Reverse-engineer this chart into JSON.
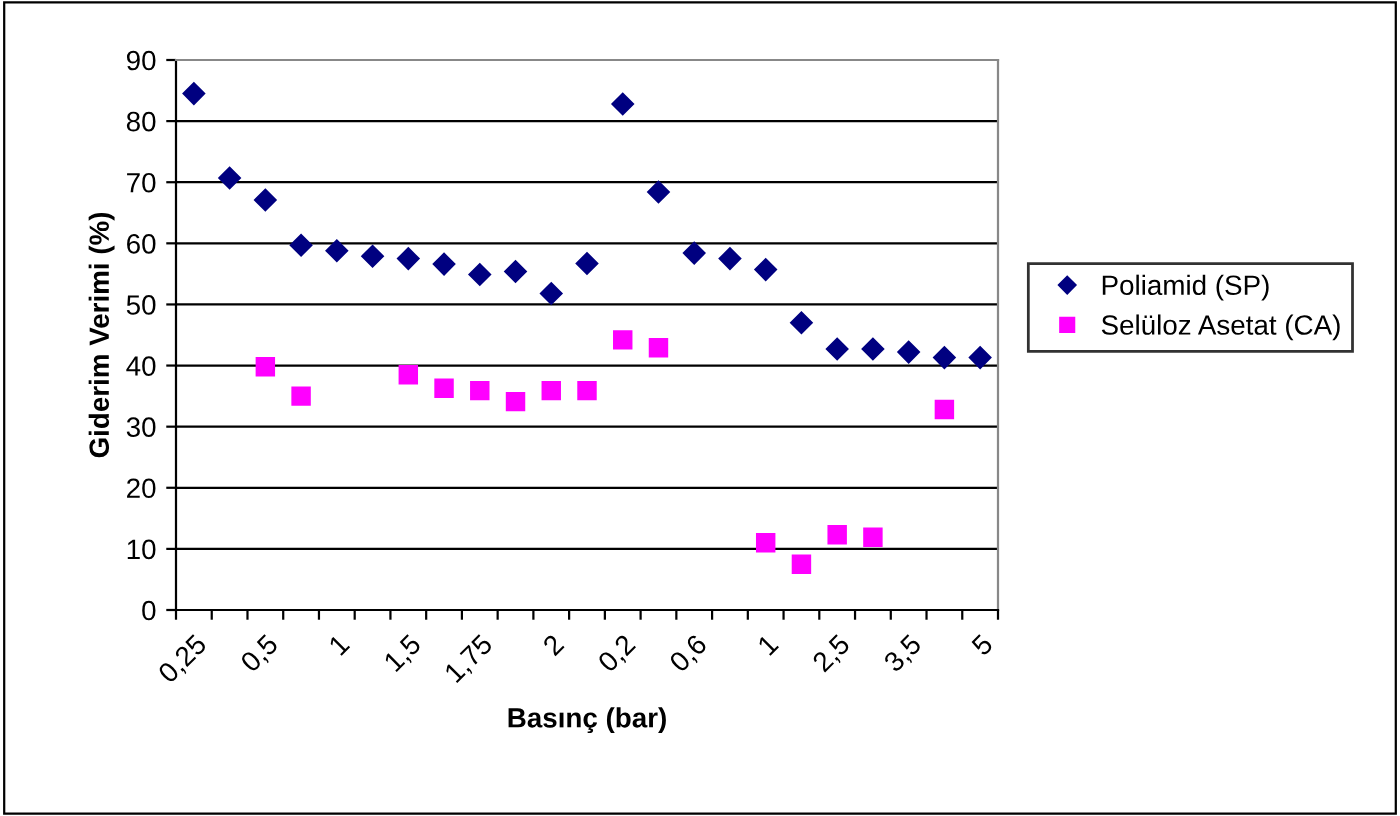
{
  "chart_data": {
    "type": "scatter",
    "xlabel": "Basınç (bar)",
    "ylabel": "Giderim Verimi (%)",
    "categories": [
      "0,25",
      null,
      "0,5",
      null,
      "1",
      null,
      "1,5",
      null,
      "1,75",
      null,
      "2",
      null,
      "0,2",
      null,
      "0,6",
      null,
      "1",
      null,
      "2,5",
      null,
      "3,5",
      null,
      "5"
    ],
    "series": [
      {
        "name": "Poliamid (SP)",
        "color": "#000080",
        "marker": "diamond",
        "values": [
          84.5,
          70.7,
          67.1,
          59.7,
          58.8,
          57.9,
          57.5,
          56.6,
          54.9,
          55.4,
          51.8,
          56.7,
          82.8,
          68.4,
          58.4,
          57.5,
          55.7,
          47.0,
          42.7,
          42.7,
          42.2,
          41.3,
          41.3
        ]
      },
      {
        "name": "Selüloz Asetat (CA)",
        "color": "#ff00ff",
        "marker": "square",
        "values": [
          null,
          null,
          39.8,
          35.0,
          null,
          null,
          38.5,
          36.3,
          35.9,
          34.1,
          35.9,
          35.9,
          44.2,
          42.9,
          null,
          null,
          11.0,
          7.5,
          12.3,
          11.9,
          null,
          32.8,
          null
        ]
      }
    ],
    "ylim": [
      0,
      90
    ],
    "yticks": [
      0,
      10,
      20,
      30,
      40,
      50,
      60,
      70,
      80,
      90
    ],
    "grid": "y",
    "legend": "right"
  }
}
